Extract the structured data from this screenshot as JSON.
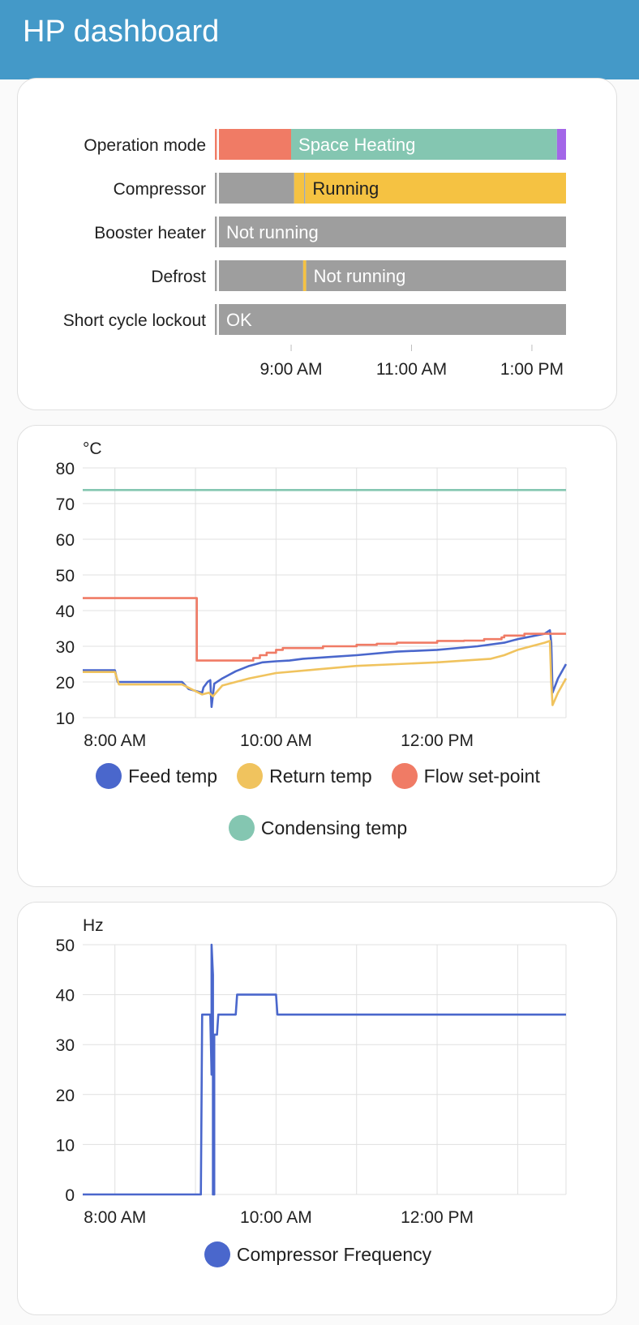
{
  "header": {
    "title": "HP dashboard"
  },
  "timeline": {
    "rows": [
      {
        "label": "Operation mode",
        "segments": [
          {
            "from": "07:44",
            "to": "07:46",
            "color": "#f07b65",
            "text": ""
          },
          {
            "from": "07:46",
            "to": "07:48",
            "color": "#ffffff",
            "text": ""
          },
          {
            "from": "07:48",
            "to": "09:00",
            "color": "#f07b65",
            "text": ""
          },
          {
            "from": "09:00",
            "to": "13:25",
            "color": "#84c6b1",
            "text": "Space Heating",
            "textColor": "#ffffff"
          },
          {
            "from": "13:25",
            "to": "13:34",
            "color": "#a366e8",
            "text": ""
          }
        ]
      },
      {
        "label": "Compressor",
        "segments": [
          {
            "from": "07:44",
            "to": "07:46",
            "color": "#9e9e9e",
            "text": ""
          },
          {
            "from": "07:46",
            "to": "07:48",
            "color": "#ffffff",
            "text": ""
          },
          {
            "from": "07:48",
            "to": "09:03",
            "color": "#9e9e9e",
            "text": ""
          },
          {
            "from": "09:03",
            "to": "09:13",
            "color": "#f5c242",
            "text": ""
          },
          {
            "from": "09:13",
            "to": "09:14",
            "color": "#8a9fc4",
            "text": ""
          },
          {
            "from": "09:14",
            "to": "13:34",
            "color": "#f5c242",
            "text": "Running",
            "textColor": "#212121"
          }
        ]
      },
      {
        "label": "Booster heater",
        "segments": [
          {
            "from": "07:44",
            "to": "07:46",
            "color": "#9e9e9e",
            "text": ""
          },
          {
            "from": "07:46",
            "to": "07:48",
            "color": "#ffffff",
            "text": ""
          },
          {
            "from": "07:48",
            "to": "13:34",
            "color": "#9e9e9e",
            "text": "Not running",
            "textColor": "#ffffff"
          }
        ]
      },
      {
        "label": "Defrost",
        "segments": [
          {
            "from": "07:44",
            "to": "07:46",
            "color": "#9e9e9e",
            "text": ""
          },
          {
            "from": "07:46",
            "to": "07:48",
            "color": "#ffffff",
            "text": ""
          },
          {
            "from": "07:48",
            "to": "09:12",
            "color": "#9e9e9e",
            "text": ""
          },
          {
            "from": "09:12",
            "to": "09:15",
            "color": "#f5c242",
            "text": ""
          },
          {
            "from": "09:15",
            "to": "13:34",
            "color": "#9e9e9e",
            "text": "Not running",
            "textColor": "#ffffff"
          }
        ]
      },
      {
        "label": "Short cycle lockout",
        "segments": [
          {
            "from": "07:44",
            "to": "07:46",
            "color": "#9e9e9e",
            "text": ""
          },
          {
            "from": "07:46",
            "to": "07:48",
            "color": "#ffffff",
            "text": ""
          },
          {
            "from": "07:48",
            "to": "13:34",
            "color": "#9e9e9e",
            "text": "OK",
            "textColor": "#ffffff"
          }
        ]
      }
    ],
    "xrange": [
      "07:44",
      "13:34"
    ],
    "ticks": [
      {
        "t": "09:00",
        "label": "9:00 AM"
      },
      {
        "t": "11:00",
        "label": "11:00 AM"
      },
      {
        "t": "13:00",
        "label": "1:00 PM"
      }
    ]
  },
  "chart_data": [
    {
      "type": "line",
      "ylabel": "°C",
      "ylim": [
        10,
        80
      ],
      "yticks": [
        10,
        20,
        30,
        40,
        50,
        60,
        70,
        80
      ],
      "xlim": [
        "07:36",
        "13:36"
      ],
      "xticks": [
        {
          "t": "08:00",
          "label": "8:00 AM"
        },
        {
          "t": "10:00",
          "label": "10:00 AM"
        },
        {
          "t": "12:00",
          "label": "12:00 PM"
        }
      ],
      "grid": true,
      "legend": "bottom",
      "series": [
        {
          "name": "Feed temp",
          "color": "#4a67cc",
          "step": false,
          "points": [
            [
              "07:36",
              23.3
            ],
            [
              "08:00",
              23.3
            ],
            [
              "08:02",
              20
            ],
            [
              "08:50",
              20
            ],
            [
              "08:55",
              18
            ],
            [
              "09:05",
              17
            ],
            [
              "09:06",
              18.5
            ],
            [
              "09:09",
              20
            ],
            [
              "09:11",
              20.5
            ],
            [
              "09:12",
              13
            ],
            [
              "09:14",
              19.5
            ],
            [
              "09:20",
              21
            ],
            [
              "09:30",
              23
            ],
            [
              "09:40",
              24.5
            ],
            [
              "09:50",
              25.5
            ],
            [
              "10:00",
              25.8
            ],
            [
              "10:10",
              26
            ],
            [
              "10:20",
              26.5
            ],
            [
              "10:40",
              27
            ],
            [
              "11:00",
              27.5
            ],
            [
              "11:30",
              28.5
            ],
            [
              "12:00",
              29
            ],
            [
              "12:30",
              30
            ],
            [
              "12:50",
              31
            ],
            [
              "13:00",
              32
            ],
            [
              "13:20",
              33.5
            ],
            [
              "13:24",
              34.5
            ],
            [
              "13:25",
              31
            ],
            [
              "13:26",
              17
            ],
            [
              "13:30",
              21
            ],
            [
              "13:36",
              25
            ]
          ]
        },
        {
          "name": "Return temp",
          "color": "#f0c35e",
          "step": false,
          "points": [
            [
              "07:36",
              22.8
            ],
            [
              "08:00",
              22.8
            ],
            [
              "08:03",
              19.3
            ],
            [
              "08:50",
              19.3
            ],
            [
              "09:05",
              16.5
            ],
            [
              "09:10",
              17
            ],
            [
              "09:13",
              16
            ],
            [
              "09:20",
              19
            ],
            [
              "09:40",
              21
            ],
            [
              "10:00",
              22.5
            ],
            [
              "10:30",
              23.5
            ],
            [
              "11:00",
              24.5
            ],
            [
              "11:30",
              25
            ],
            [
              "12:00",
              25.5
            ],
            [
              "12:40",
              26.5
            ],
            [
              "12:50",
              27.5
            ],
            [
              "13:00",
              29
            ],
            [
              "13:20",
              31
            ],
            [
              "13:24",
              31.5
            ],
            [
              "13:25",
              20
            ],
            [
              "13:26",
              13.5
            ],
            [
              "13:30",
              17
            ],
            [
              "13:36",
              21
            ]
          ]
        },
        {
          "name": "Flow set-point",
          "color": "#f07b65",
          "step": true,
          "points": [
            [
              "07:36",
              43.5
            ],
            [
              "09:00",
              43.5
            ],
            [
              "09:01",
              26
            ],
            [
              "09:40",
              26
            ],
            [
              "09:43",
              26.7
            ],
            [
              "09:48",
              27.5
            ],
            [
              "09:53",
              28.2
            ],
            [
              "10:00",
              29
            ],
            [
              "10:05",
              29.5
            ],
            [
              "10:30",
              29.5
            ],
            [
              "10:35",
              30
            ],
            [
              "11:00",
              30.4
            ],
            [
              "11:15",
              30.7
            ],
            [
              "11:30",
              31
            ],
            [
              "12:00",
              31.5
            ],
            [
              "12:20",
              31.6
            ],
            [
              "12:35",
              32
            ],
            [
              "12:48",
              32.5
            ],
            [
              "12:50",
              33
            ],
            [
              "13:05",
              33.5
            ],
            [
              "13:36",
              33.5
            ]
          ]
        },
        {
          "name": "Condensing temp",
          "color": "#84c6b1",
          "step": false,
          "points": [
            [
              "07:36",
              73.8
            ],
            [
              "13:36",
              73.8
            ]
          ]
        }
      ]
    },
    {
      "type": "line",
      "ylabel": "Hz",
      "ylim": [
        0,
        50
      ],
      "yticks": [
        0,
        10,
        20,
        30,
        40,
        50
      ],
      "xlim": [
        "07:36",
        "13:36"
      ],
      "xticks": [
        {
          "t": "08:00",
          "label": "8:00 AM"
        },
        {
          "t": "10:00",
          "label": "10:00 AM"
        },
        {
          "t": "12:00",
          "label": "12:00 PM"
        }
      ],
      "grid": true,
      "legend": "bottom",
      "series": [
        {
          "name": "Compressor Frequency",
          "color": "#4a67cc",
          "step": false,
          "points": [
            [
              "07:36",
              0
            ],
            [
              "09:04",
              0
            ],
            [
              "09:05",
              36
            ],
            [
              "09:11",
              36
            ],
            [
              "09:12",
              24
            ],
            [
              "09:12",
              50
            ],
            [
              "09:13",
              44
            ],
            [
              "09:13",
              0
            ],
            [
              "09:14",
              0
            ],
            [
              "09:14",
              32
            ],
            [
              "09:16",
              32
            ],
            [
              "09:17",
              36
            ],
            [
              "09:30",
              36
            ],
            [
              "09:31",
              40
            ],
            [
              "10:00",
              40
            ],
            [
              "10:01",
              36
            ],
            [
              "13:36",
              36
            ]
          ]
        }
      ]
    }
  ]
}
